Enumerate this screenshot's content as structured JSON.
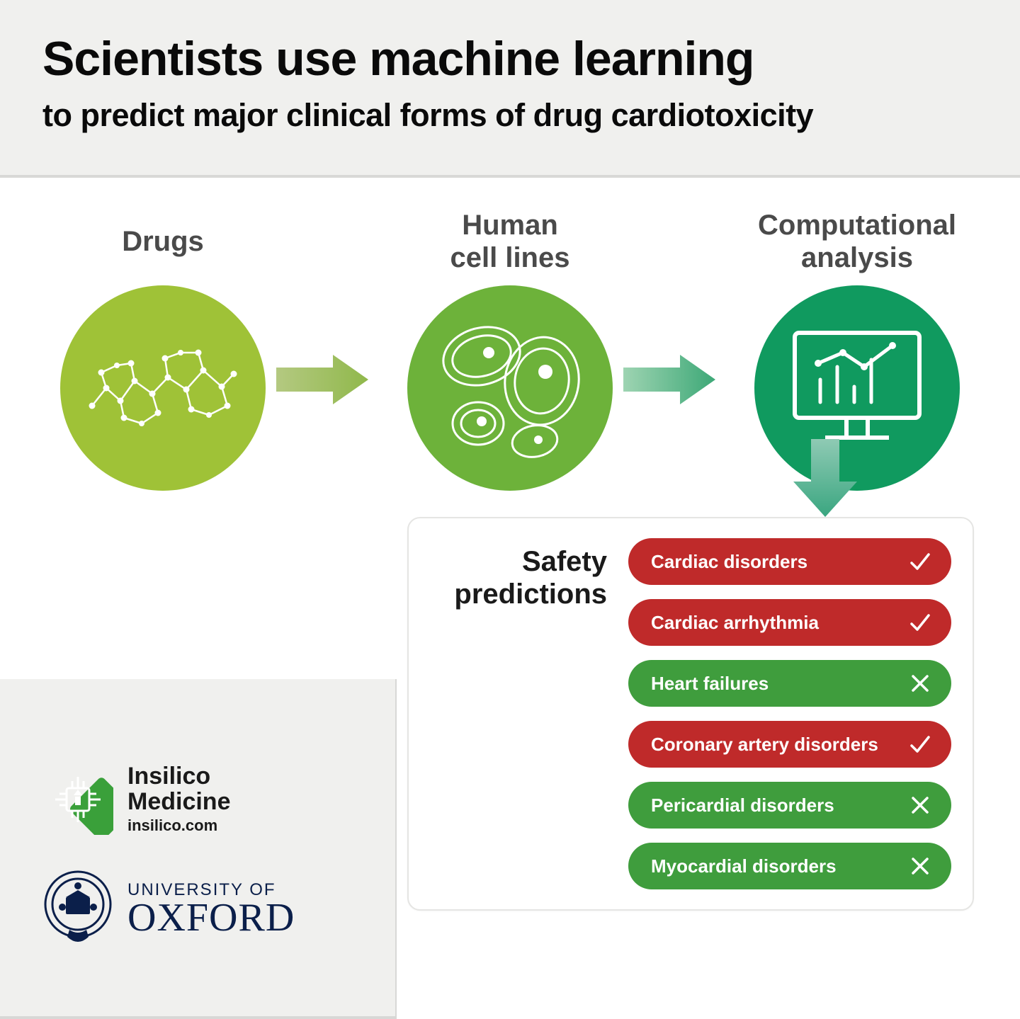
{
  "header": {
    "title": "Scientists use machine learning",
    "subtitle": "to predict major clinical forms of drug cardiotoxicity",
    "title_color": "#0a0a0a",
    "bg_color": "#f0f0ee",
    "title_fontsize": 68,
    "subtitle_fontsize": 45
  },
  "flow": {
    "stages": [
      {
        "label": "Drugs",
        "circle_color": "#9fc237",
        "icon": "molecule"
      },
      {
        "label": "Human\ncell lines",
        "circle_color": "#6db23a",
        "icon": "cells"
      },
      {
        "label": "Computational\nanalysis",
        "circle_color": "#109a5f",
        "icon": "monitor-chart"
      }
    ],
    "arrows": {
      "a1": {
        "from": "#b4c981",
        "to": "#90b84b"
      },
      "a2": {
        "from": "#9ed4b2",
        "to": "#3da877"
      },
      "down": {
        "from": "#8fcab4",
        "to": "#3aa680"
      }
    },
    "label_color": "#4a4a4a",
    "label_fontsize": 40
  },
  "predictions": {
    "panel_label": "Safety predictions",
    "panel_label_fontsize": 40,
    "items": [
      {
        "label": "Cardiac disorders",
        "result": "pos",
        "bg": "#bf2a2a"
      },
      {
        "label": "Cardiac arrhythmia",
        "result": "pos",
        "bg": "#bf2a2a"
      },
      {
        "label": "Heart failures",
        "result": "neg",
        "bg": "#3f9d3d"
      },
      {
        "label": "Coronary artery disorders",
        "result": "pos",
        "bg": "#bf2a2a"
      },
      {
        "label": "Pericardial disorders",
        "result": "neg",
        "bg": "#3f9d3d"
      },
      {
        "label": "Myocardial disorders",
        "result": "neg",
        "bg": "#3f9d3d"
      }
    ],
    "item_fontsize": 26,
    "text_color": "#ffffff"
  },
  "brands": {
    "insilico": {
      "line1": "Insilico",
      "line2": "Medicine",
      "url": "insilico.com",
      "logo_color": "#3aa03a"
    },
    "oxford": {
      "top": "UNIVERSITY OF",
      "main": "OXFORD",
      "color": "#0b1f4a"
    }
  }
}
